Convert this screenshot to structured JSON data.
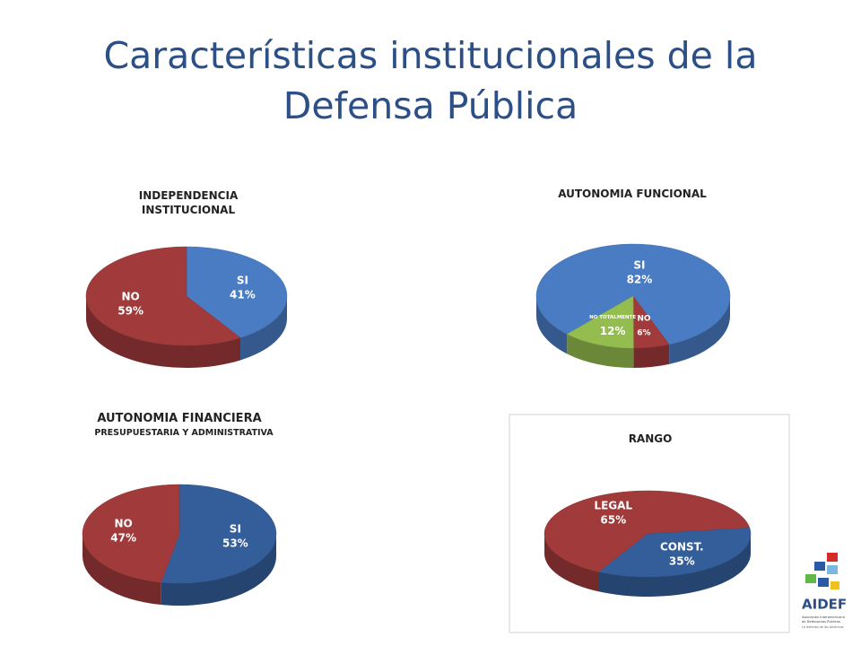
{
  "title": "Características institucionales de la Defensa Pública",
  "logo": {
    "name": "AIDEF",
    "line1": "Asociación Interamericana",
    "line2": "de Defensorías Públicas",
    "line3": "La defensa de las Américas"
  },
  "chart_data": [
    {
      "type": "pie",
      "title": "INDEPENDENCIA INSTITUCIONAL",
      "categories": [
        "SI",
        "NO"
      ],
      "values": [
        41,
        59
      ],
      "value_labels": [
        "41%",
        "59%"
      ],
      "colors": [
        "#4a7cc4",
        "#a13a3a"
      ]
    },
    {
      "type": "pie",
      "title": "AUTONOMIA FUNCIONAL",
      "categories": [
        "SI",
        "NO",
        "NO TOTALMENTE"
      ],
      "values": [
        82,
        6,
        12
      ],
      "value_labels": [
        "82%",
        "6%",
        "12%"
      ],
      "colors": [
        "#4a7cc4",
        "#a13a3a",
        "#94bd4f"
      ]
    },
    {
      "type": "pie",
      "title": "AUTONOMIA FINANCIERA",
      "subtitle": "PRESUPUESTARIA Y ADMINISTRATIVA",
      "categories": [
        "SI",
        "NO"
      ],
      "values": [
        53,
        47
      ],
      "value_labels": [
        "53%",
        "47%"
      ],
      "colors": [
        "#345e9a",
        "#a13a3a"
      ]
    },
    {
      "type": "pie",
      "title": "RANGO",
      "categories": [
        "LEGAL",
        "CONST."
      ],
      "values": [
        65,
        35
      ],
      "value_labels": [
        "65%",
        "35%"
      ],
      "colors": [
        "#a13a3a",
        "#345e9a"
      ]
    }
  ]
}
